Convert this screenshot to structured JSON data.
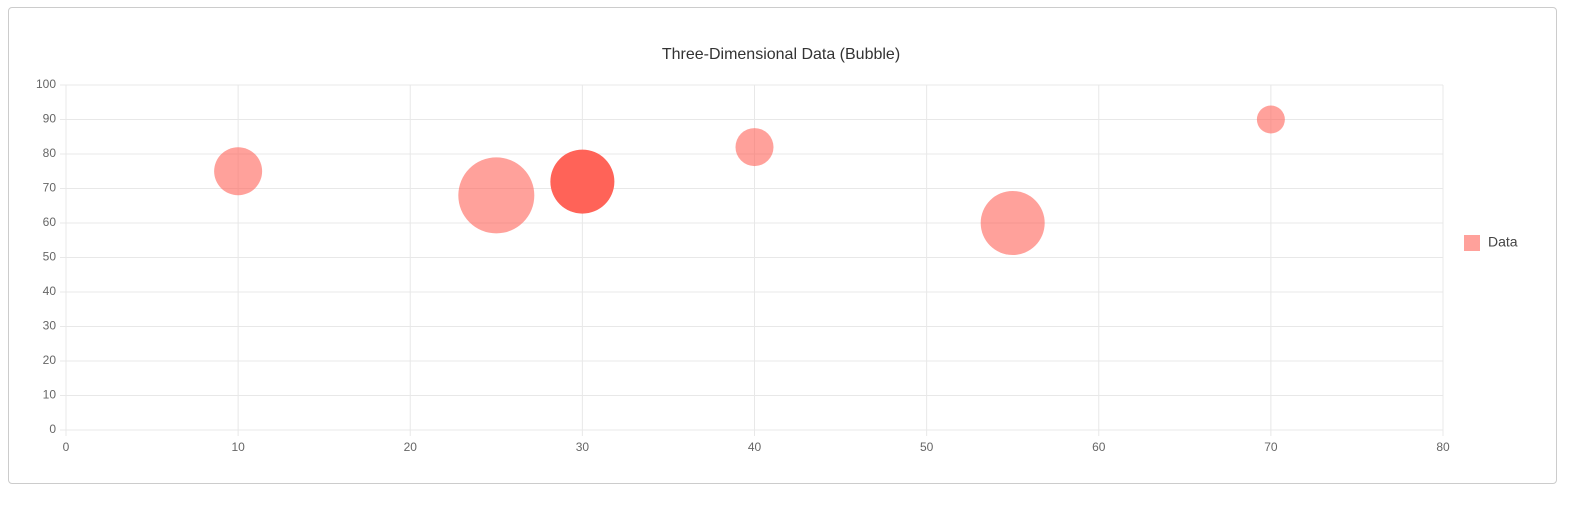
{
  "chart_data": {
    "type": "bubble",
    "title": "Three-Dimensional Data (Bubble)",
    "series": [
      {
        "name": "Data",
        "color": "rgba(255, 99, 88, 0.6)",
        "hover_color": "rgba(255, 99, 88, 1)",
        "x": [
          10,
          25,
          30,
          40,
          55,
          70
        ],
        "values": [
          75,
          68,
          72,
          82,
          60,
          90
        ],
        "sizes": [
          24,
          38,
          32,
          19,
          32,
          14
        ]
      }
    ],
    "active_index": 2,
    "xlim": [
      0,
      80
    ],
    "xticks": [
      0,
      10,
      20,
      30,
      40,
      50,
      60,
      70,
      80
    ],
    "ylim": [
      0,
      100
    ],
    "yticks": [
      0,
      10,
      20,
      30,
      40,
      50,
      60,
      70,
      80,
      90,
      100
    ],
    "grid": true,
    "legend": "right"
  }
}
